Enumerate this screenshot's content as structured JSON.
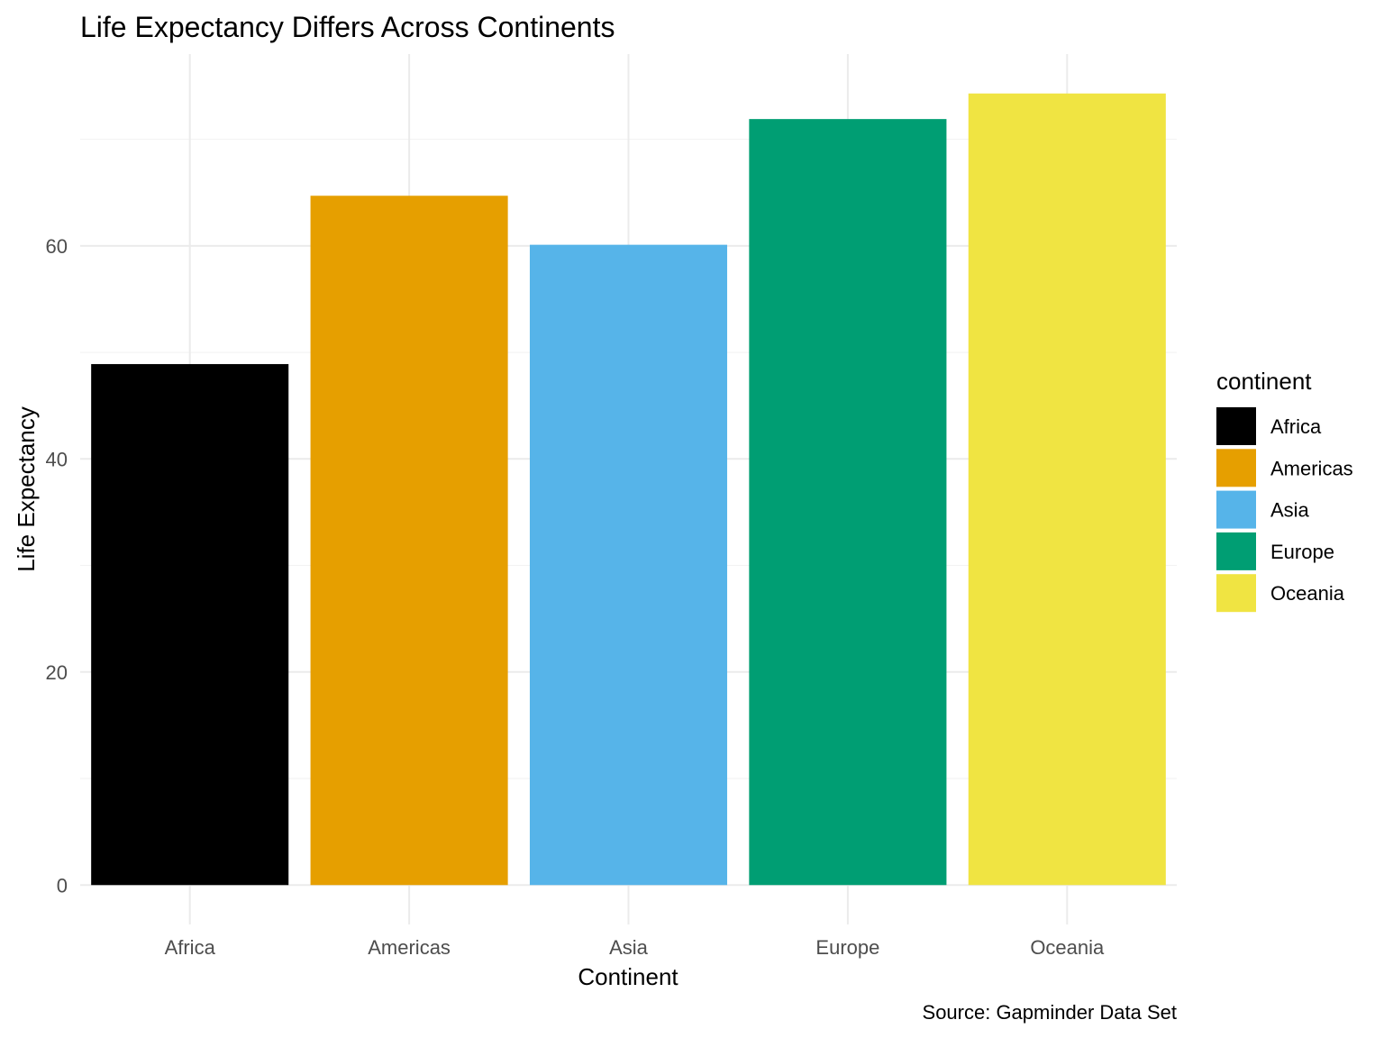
{
  "chart_data": {
    "type": "bar",
    "title": "Life Expectancy Differs Across Continents",
    "xlabel": "Continent",
    "ylabel": "Life Expectancy",
    "caption": "Source: Gapminder Data Set",
    "categories": [
      "Africa",
      "Americas",
      "Asia",
      "Europe",
      "Oceania"
    ],
    "values": [
      48.9,
      64.7,
      60.1,
      71.9,
      74.3
    ],
    "colors": [
      "#000000",
      "#E69F00",
      "#56B4E9",
      "#009E73",
      "#F0E442"
    ],
    "yticks": [
      0,
      20,
      40,
      60
    ],
    "ylim": [
      -3.7,
      78
    ],
    "grid": true,
    "legend": {
      "title": "continent",
      "position": "right",
      "entries": [
        "Africa",
        "Americas",
        "Asia",
        "Europe",
        "Oceania"
      ]
    }
  }
}
